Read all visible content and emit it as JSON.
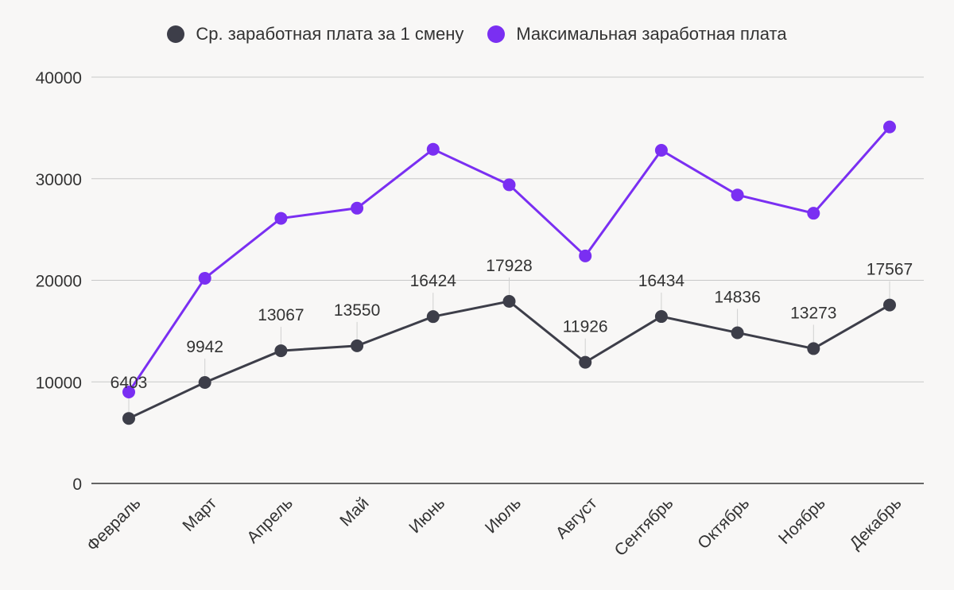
{
  "legend": {
    "series0": "Ср. заработная плата за 1 смену",
    "series1": "Максимальная заработная плата"
  },
  "colors": {
    "series0": "#3d3e49",
    "series1": "#7a2ff2",
    "grid": "#c8c8c8",
    "axis": "#333333"
  },
  "chart_data": {
    "type": "line",
    "title": "",
    "xlabel": "",
    "ylabel": "",
    "ylim": [
      0,
      40000
    ],
    "yticks": [
      0,
      10000,
      20000,
      30000,
      40000
    ],
    "yticklabels": [
      "0",
      "10000",
      "20000",
      "30000",
      "40000"
    ],
    "categories": [
      "Февраль",
      "Март",
      "Апрель",
      "Май",
      "Июнь",
      "Июль",
      "Август",
      "Сентябрь",
      "Октябрь",
      "Ноябрь",
      "Декабрь"
    ],
    "series": [
      {
        "name": "Ср. заработная плата за 1 смену",
        "values": [
          6403,
          9942,
          13067,
          13550,
          16424,
          17928,
          11926,
          16434,
          14836,
          13273,
          17567
        ],
        "labels": [
          "6403",
          "9942",
          "13067",
          "13550",
          "16424",
          "17928",
          "11926",
          "16434",
          "14836",
          "13273",
          "17567"
        ]
      },
      {
        "name": "Максимальная заработная плата",
        "values": [
          9000,
          20200,
          26100,
          27100,
          32900,
          29400,
          22400,
          32800,
          28400,
          26600,
          35100
        ]
      }
    ]
  }
}
